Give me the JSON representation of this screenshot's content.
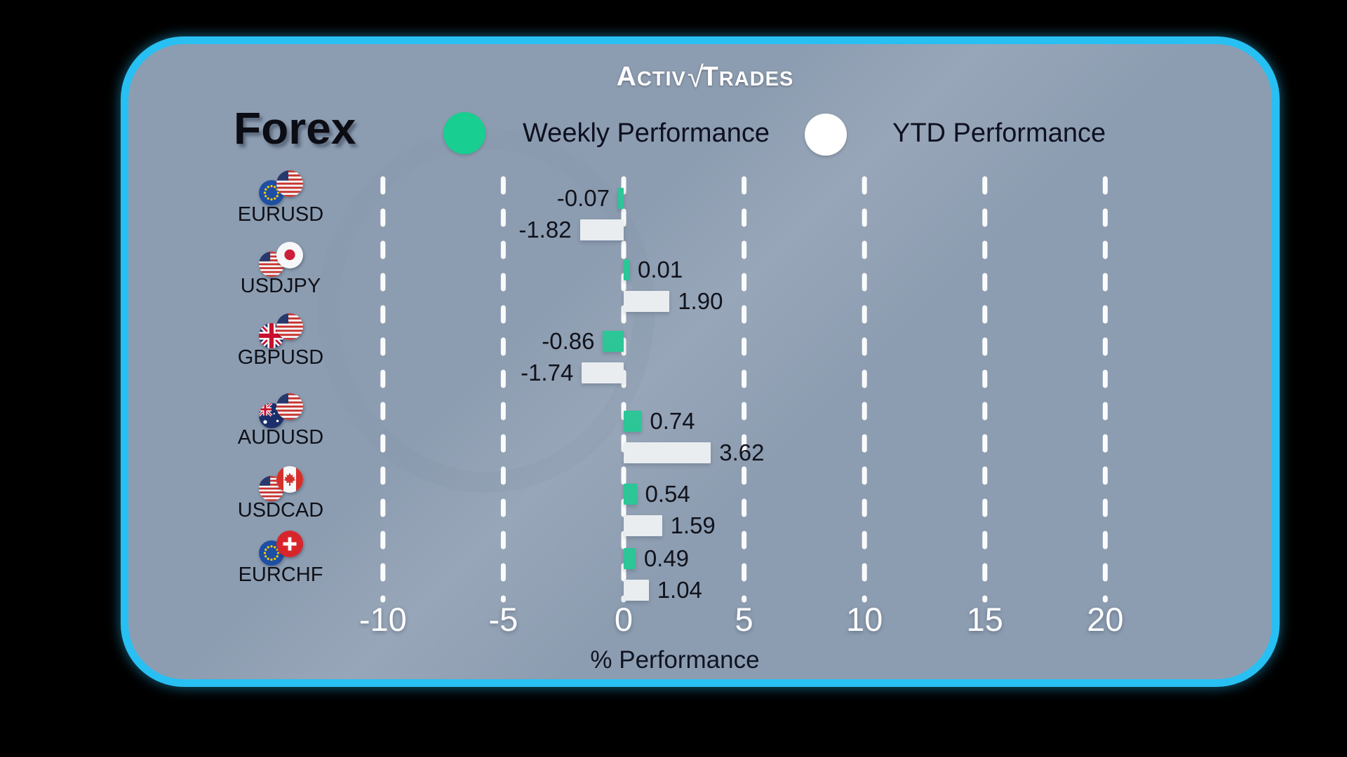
{
  "brand": {
    "left": "Activ",
    "separator": "√",
    "right": "Trades"
  },
  "header": {
    "title": "Forex"
  },
  "legend": {
    "weekly": {
      "label": "Weekly Performance",
      "color": "#18ce90"
    },
    "ytd": {
      "label": "YTD Performance",
      "color": "#ffffff"
    }
  },
  "chart_data": {
    "type": "bar",
    "orientation": "horizontal",
    "xlabel": "% Performance",
    "axis_range": [
      -10,
      20
    ],
    "ticks": [
      -10,
      -5,
      0,
      5,
      10,
      15,
      20
    ],
    "grid": "dashed-vertical-white",
    "legend_position": "top",
    "categories": [
      "EURUSD",
      "USDJPY",
      "GBPUSD",
      "AUDUSD",
      "USDCAD",
      "EURCHF"
    ],
    "series": [
      {
        "name": "Weekly Performance",
        "color": "#2cc697",
        "values": [
          -0.07,
          0.01,
          -0.86,
          0.74,
          0.54,
          0.49
        ]
      },
      {
        "name": "YTD Performance",
        "color": "#e9edf0",
        "values": [
          -1.82,
          1.9,
          -1.74,
          3.62,
          1.59,
          1.04
        ]
      }
    ],
    "rows": [
      {
        "pair": "EURUSD",
        "flags": [
          "eu",
          "us"
        ],
        "weekly": "-0.07",
        "ytd": "-1.82"
      },
      {
        "pair": "USDJPY",
        "flags": [
          "us",
          "jp"
        ],
        "weekly": "0.01",
        "ytd": "1.90"
      },
      {
        "pair": "GBPUSD",
        "flags": [
          "gb",
          "us"
        ],
        "weekly": "-0.86",
        "ytd": "-1.74"
      },
      {
        "pair": "AUDUSD",
        "flags": [
          "au",
          "us"
        ],
        "weekly": "0.74",
        "ytd": "3.62"
      },
      {
        "pair": "USDCAD",
        "flags": [
          "us",
          "ca"
        ],
        "weekly": "0.54",
        "ytd": "1.59"
      },
      {
        "pair": "EURCHF",
        "flags": [
          "eu",
          "ch"
        ],
        "weekly": "0.49",
        "ytd": "1.04"
      }
    ]
  }
}
